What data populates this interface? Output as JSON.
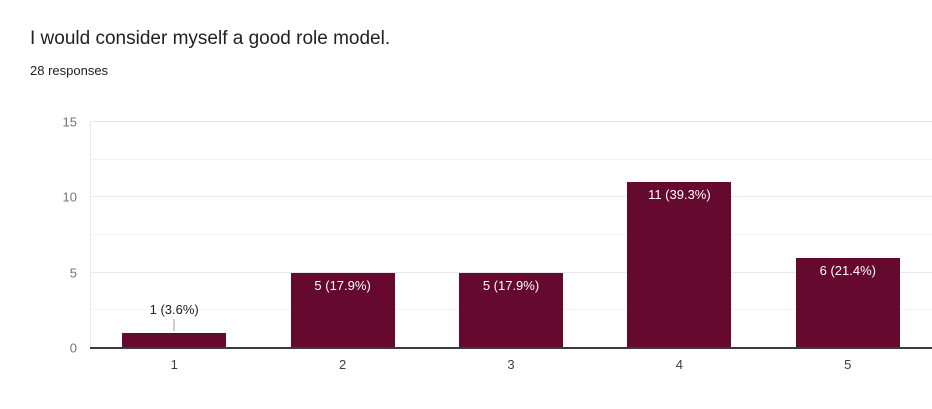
{
  "chart_data": {
    "type": "bar",
    "title": "I would consider myself a good role model.",
    "subtitle": "28 responses",
    "categories": [
      "1",
      "2",
      "3",
      "4",
      "5"
    ],
    "values": [
      1,
      5,
      5,
      11,
      6
    ],
    "point_labels": [
      "1 (3.6%)",
      "5 (17.9%)",
      "5 (17.9%)",
      "11 (39.3%)",
      "6 (21.4%)"
    ],
    "xlabel": "",
    "ylabel": "",
    "ylim": [
      0,
      15
    ],
    "yticks": [
      0,
      5,
      10,
      15
    ],
    "minor_yticks": [
      2.5,
      7.5,
      12.5
    ],
    "grid": "on",
    "legend": "none"
  },
  "colors": {
    "bar": "#65092f",
    "baseline": "#3c3c3c",
    "grid_major": "#e8e8e8",
    "grid_minor": "#f4f4f4",
    "title_text": "#212121",
    "subtitle_text": "#202124",
    "ytick_text": "#757575",
    "xtick_text": "#3c4043",
    "label_inside": "#ffffff",
    "label_outside": "#212121"
  }
}
